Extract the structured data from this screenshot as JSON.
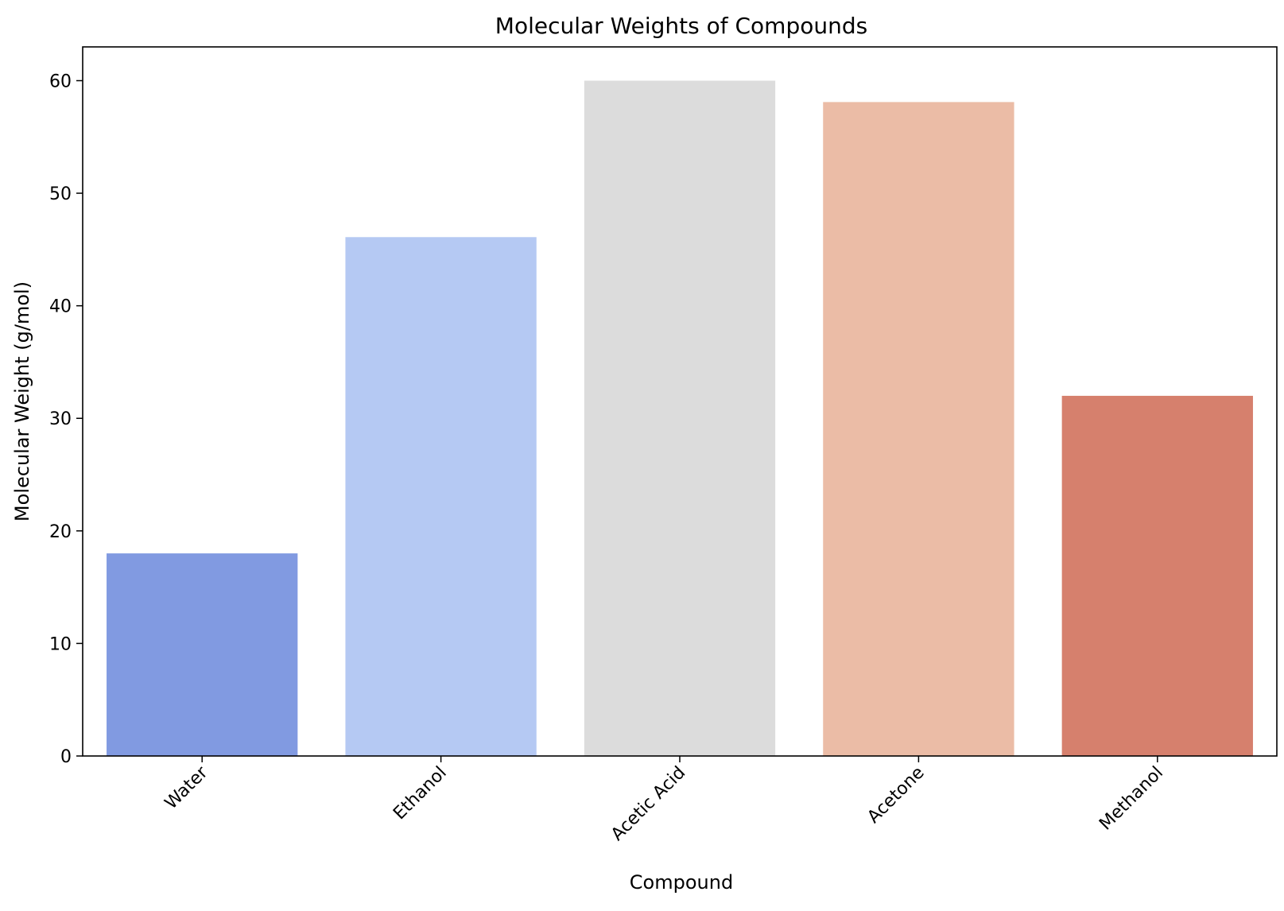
{
  "chart_data": {
    "type": "bar",
    "title": "Molecular Weights of Compounds",
    "xlabel": "Compound",
    "ylabel": "Molecular Weight (g/mol)",
    "categories": [
      "Water",
      "Ethanol",
      "Acetic Acid",
      "Acetone",
      "Methanol"
    ],
    "values": [
      18.0,
      46.1,
      60.0,
      58.1,
      32.0
    ],
    "colors": [
      "#819ae1",
      "#b5c9f3",
      "#dcdcdc",
      "#ebbca6",
      "#d6806d"
    ],
    "ylim": [
      0,
      63
    ],
    "yticks": [
      0,
      10,
      20,
      30,
      40,
      50,
      60
    ],
    "grid": false,
    "legend": "none"
  }
}
